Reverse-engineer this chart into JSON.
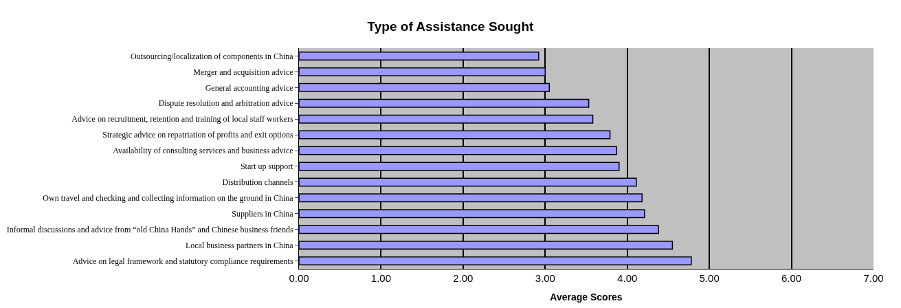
{
  "chart_data": {
    "type": "bar",
    "orientation": "horizontal",
    "title": "Type of Assistance Sought",
    "xlabel": "Average Scores",
    "categories": [
      "Outsourcing/localization of components in China",
      "Merger and acquisition advice",
      "General accounting advice",
      "Dispute resolution and arbitration advice",
      "Advice on recruitment, retention and training of local staff workers",
      "Strategic advice on repatriation of profits and exit options",
      "Availability of consulting services and business advice",
      "Start up support",
      "Distribution channels",
      "Own travel and checking and collecting information on the ground in China",
      "Suppliers in China",
      "Informal discussions and advice from “old China Hands” and Chinese business friends",
      "Local business partners in China",
      "Advice on legal framework and statutory compliance requirements"
    ],
    "values": [
      2.92,
      3.0,
      3.05,
      3.53,
      3.58,
      3.79,
      3.87,
      3.9,
      4.11,
      4.18,
      4.21,
      4.38,
      4.55,
      4.78
    ],
    "color": "#9999ff",
    "xlim": [
      0,
      7
    ],
    "xticks": [
      {
        "value": 0,
        "label": "0.00"
      },
      {
        "value": 1,
        "label": "1.00"
      },
      {
        "value": 2,
        "label": "2.00"
      },
      {
        "value": 3,
        "label": "3.00"
      },
      {
        "value": 4,
        "label": "4.00"
      },
      {
        "value": 5,
        "label": "5.00"
      },
      {
        "value": 6,
        "label": "6.00"
      },
      {
        "value": 7,
        "label": "7.00"
      }
    ],
    "grid": "x",
    "legend": false
  }
}
